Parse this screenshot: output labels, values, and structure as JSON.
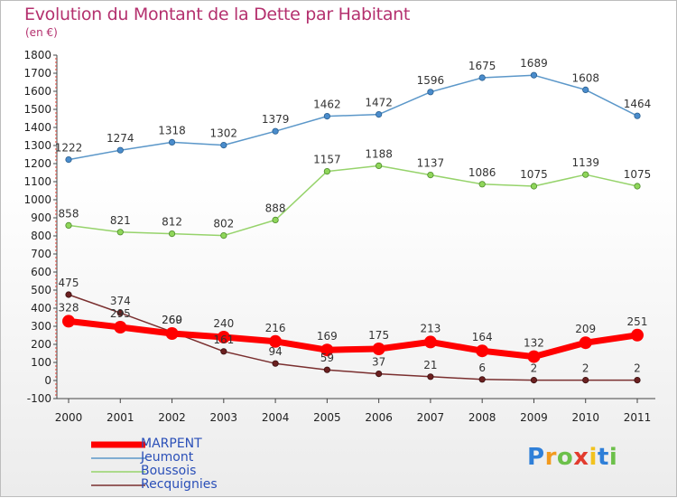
{
  "header": {
    "title": "Evolution du Montant de la Dette par Habitant",
    "subtitle": "(en €)"
  },
  "logo": {
    "text": "Proxiti"
  },
  "chart_data": {
    "type": "line",
    "title": "Evolution du Montant de la Dette par Habitant",
    "subtitle": "(en €)",
    "xlabel": "",
    "ylabel": "",
    "x": [
      "2000",
      "2001",
      "2002",
      "2003",
      "2004",
      "2005",
      "2006",
      "2007",
      "2008",
      "2009",
      "2010",
      "2011"
    ],
    "ylim": [
      -100,
      1800
    ],
    "yticks": [
      -100,
      0,
      100,
      200,
      300,
      400,
      500,
      600,
      700,
      800,
      900,
      1000,
      1100,
      1200,
      1300,
      1400,
      1500,
      1600,
      1700,
      1800
    ],
    "grid": false,
    "legend_position": "bottom-left",
    "series": [
      {
        "name": "MARPENT",
        "color": "#ff0000",
        "values": [
          328,
          295,
          260,
          240,
          216,
          169,
          175,
          213,
          164,
          132,
          209,
          251
        ]
      },
      {
        "name": "Jeumont",
        "color": "#5b97c9",
        "values": [
          1222,
          1274,
          1318,
          1302,
          1379,
          1462,
          1472,
          1596,
          1675,
          1689,
          1608,
          1464
        ]
      },
      {
        "name": "Boussois",
        "color": "#96d36b",
        "values": [
          858,
          821,
          812,
          802,
          888,
          1157,
          1188,
          1137,
          1086,
          1075,
          1139,
          1075
        ]
      },
      {
        "name": "Recquignies",
        "color": "#7a2f2f",
        "values": [
          475,
          374,
          269,
          161,
          94,
          59,
          37,
          21,
          6,
          2,
          2,
          2
        ]
      }
    ]
  }
}
